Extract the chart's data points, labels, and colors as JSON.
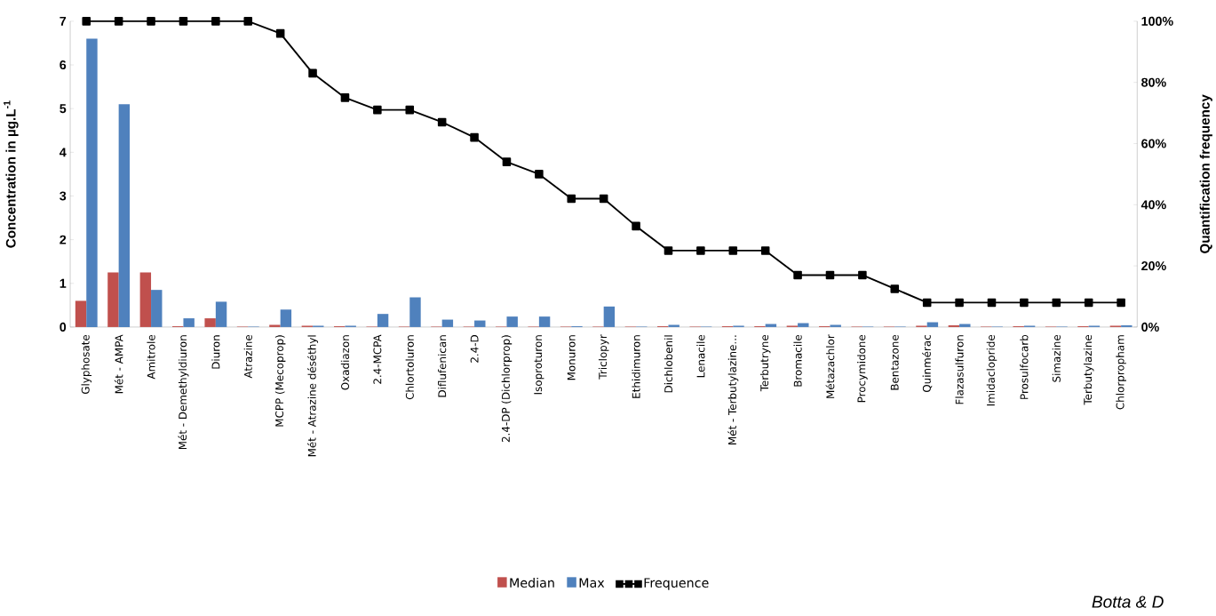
{
  "chart_data": {
    "type": "bar",
    "categories": [
      "Glyphosate",
      "Mét - AMPA",
      "Amitrole",
      "Mét - Demethyldiuron",
      "Diuron",
      "Atrazine",
      "MCPP (Mecoprop)",
      "Mét - Atrazine déséthyl",
      "Oxadiazon",
      "2.4-MCPA",
      "Chlortoluron",
      "Diflufenican",
      "2.4-D",
      "2.4-DP (Dichlorprop)",
      "Isoproturon",
      "Monuron",
      "Triclopyr",
      "Ethidimuron",
      "Dichlobenil",
      "Lenacile",
      "Mét - Terbutylazine...",
      "Terbutryne",
      "Bromacile",
      "Métazachlor",
      "Procymidone",
      "Bentazone",
      "Quinmérac",
      "Flazasulfuron",
      "Imidaclopride",
      "Prosulfocarb",
      "Simazine",
      "Terbutylazine",
      "Chlorpropham"
    ],
    "series": [
      {
        "name": "Median",
        "color": "#c0504d",
        "values": [
          0.6,
          1.25,
          1.25,
          0.02,
          0.2,
          0.01,
          0.05,
          0.03,
          0.02,
          0.01,
          0.01,
          0.01,
          0.01,
          0.01,
          0.01,
          0.01,
          0.01,
          0.01,
          0.02,
          0.01,
          0.02,
          0.02,
          0.03,
          0.02,
          0.01,
          0.01,
          0.03,
          0.04,
          0.01,
          0.02,
          0.01,
          0.02,
          0.03
        ]
      },
      {
        "name": "Max",
        "color": "#4f81bd",
        "values": [
          6.6,
          5.1,
          0.85,
          0.2,
          0.58,
          0.01,
          0.4,
          0.03,
          0.03,
          0.3,
          0.68,
          0.17,
          0.15,
          0.24,
          0.24,
          0.02,
          0.47,
          0.01,
          0.05,
          0.01,
          0.03,
          0.07,
          0.09,
          0.05,
          0.01,
          0.01,
          0.11,
          0.07,
          0.01,
          0.03,
          0.01,
          0.03,
          0.04
        ]
      },
      {
        "name": "Frequence",
        "type": "line",
        "axis": "y2",
        "color": "#000000",
        "values": [
          100,
          100,
          100,
          100,
          100,
          100,
          96,
          83,
          75,
          71,
          71,
          67,
          62,
          54,
          50,
          42,
          42,
          33,
          25,
          25,
          25,
          25,
          17,
          17,
          17,
          12.5,
          8,
          8,
          8,
          8,
          8,
          8,
          8
        ]
      }
    ],
    "ylabel": "Concentration in µg.L$^{-1}$",
    "y2label": "Quantification frequency",
    "ylim": [
      0,
      7
    ],
    "yticks": [
      0,
      1,
      2,
      3,
      4,
      5,
      6,
      7
    ],
    "y2lim": [
      0,
      100
    ],
    "y2ticks": [
      {
        "value": 0,
        "label": "0%"
      },
      {
        "value": 20,
        "label": "20%"
      },
      {
        "value": 40,
        "label": "40%"
      },
      {
        "value": 60,
        "label": "60%"
      },
      {
        "value": 80,
        "label": "80%"
      },
      {
        "value": 100,
        "label": "100%"
      }
    ],
    "marker": "square",
    "legend": "bottom",
    "annotations": [
      "Botta & D"
    ]
  }
}
